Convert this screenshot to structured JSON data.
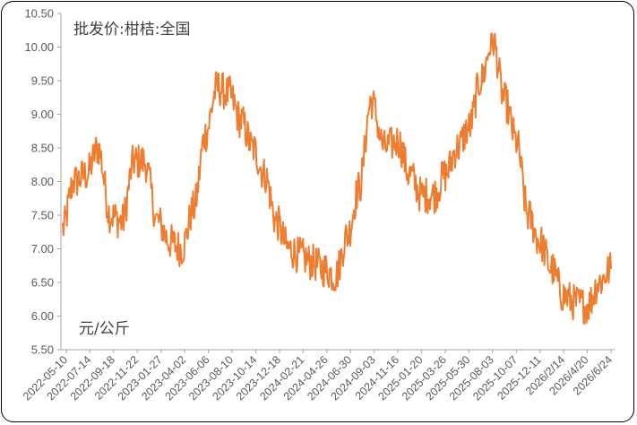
{
  "chart_data": {
    "type": "line",
    "title": "批发价:柑桔:全国",
    "unit_label": "元/公斤",
    "ylim": [
      5.5,
      10.5
    ],
    "y_ticks": [
      "5.50",
      "6.00",
      "6.50",
      "7.00",
      "7.50",
      "8.00",
      "8.50",
      "9.00",
      "9.50",
      "10.00",
      "10.50"
    ],
    "x_ticks": [
      "2022-05-10",
      "2022-07-14",
      "2022-09-18",
      "2022-11-22",
      "2023-01-27",
      "2023-04-02",
      "2023-06-06",
      "2023-08-10",
      "2023-10-14",
      "2023-12-18",
      "2024-02-21",
      "2024-04-26",
      "2024-06-30",
      "2024-09-03",
      "2024-11-16",
      "2025-01-20",
      "2025-03-26",
      "2025-05-30",
      "2025-08-03",
      "2025-10-07",
      "2025-12-11",
      "2026/2/14",
      "2026/4/20",
      "2026/6/24"
    ],
    "line_color": "#ED7D31",
    "grid": false,
    "legend": "none",
    "series": [
      {
        "x": [
          "2022-05-10",
          "2022-06-10",
          "2022-07-14",
          "2022-08-15",
          "2022-09-18",
          "2022-10-20",
          "2022-11-22",
          "2022-12-20",
          "2023-01-27",
          "2023-03-01",
          "2023-04-02",
          "2023-05-05",
          "2023-06-06",
          "2023-07-08",
          "2023-08-10",
          "2023-09-12",
          "2023-10-14",
          "2023-11-16",
          "2023-12-18",
          "2024-01-20",
          "2024-02-21",
          "2024-03-24",
          "2024-04-26",
          "2024-05-28",
          "2024-06-30",
          "2024-08-01",
          "2024-09-03",
          "2024-10-10",
          "2024-11-16",
          "2024-12-18",
          "2025-01-20",
          "2025-02-22",
          "2025-03-26",
          "2025-04-28",
          "2025-05-30",
          "2025-07-01",
          "2025-08-03",
          "2025-09-05",
          "2025-10-07",
          "2025-11-08",
          "2025-12-11",
          "2026-01-12",
          "2026-02-14",
          "2026-03-18",
          "2026-04-20",
          "2026-05-22",
          "2026-06-24"
        ],
        "values": [
          7.3,
          8.0,
          8.1,
          8.5,
          7.5,
          7.4,
          8.3,
          8.3,
          7.4,
          7.1,
          7.0,
          7.6,
          8.7,
          9.4,
          9.3,
          8.9,
          8.5,
          8.1,
          7.4,
          7.0,
          6.9,
          6.8,
          6.7,
          6.6,
          7.2,
          7.9,
          9.2,
          8.5,
          8.6,
          8.1,
          7.8,
          7.8,
          8.1,
          8.5,
          8.8,
          9.5,
          10.1,
          9.2,
          8.6,
          7.5,
          7.1,
          6.7,
          6.3,
          6.2,
          6.15,
          6.5,
          6.7
        ]
      }
    ]
  }
}
